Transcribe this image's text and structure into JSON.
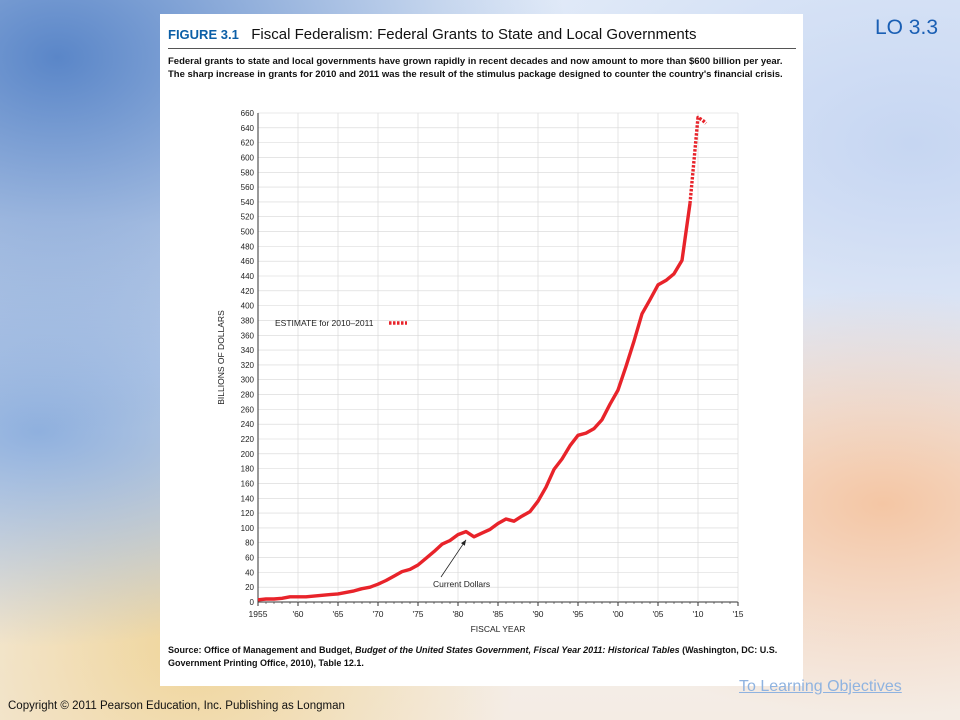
{
  "slide": {
    "lo_label": "LO 3.3",
    "link_text": "To Learning Objectives",
    "copyright": "Copyright © 2011 Pearson Education, Inc. Publishing as Longman"
  },
  "figure": {
    "label": "FIGURE 3.1",
    "title": "Fiscal Federalism: Federal Grants to State and Local Governments",
    "caption": "Federal grants to state and local governments have grown rapidly in recent decades and now amount to more than $600 billion per year. The sharp increase in grants for 2010 and 2011 was the result of the stimulus package designed to counter the country's financial crisis.",
    "source_prefix": "Source: Office of Management and Budget, ",
    "source_italic": "Budget of the United States Government, Fiscal Year 2011: Historical Tables",
    "source_suffix": " (Washington, DC: U.S. Government Printing Office, 2010), Table 12.1."
  },
  "chart_data": {
    "type": "line",
    "xlabel": "FISCAL YEAR",
    "ylabel": "BILLIONS OF DOLLARS",
    "xlim": [
      1955,
      2015
    ],
    "ylim": [
      0,
      660
    ],
    "x_ticks": [
      1955,
      1960,
      1965,
      1970,
      1975,
      1980,
      1985,
      1990,
      1995,
      2000,
      2005,
      2010,
      2015
    ],
    "x_tick_labels": [
      "1955",
      "'60",
      "'65",
      "'70",
      "'75",
      "'80",
      "'85",
      "'90",
      "'95",
      "'00",
      "'05",
      "'10",
      "'15"
    ],
    "y_ticks": [
      0,
      20,
      40,
      60,
      80,
      100,
      120,
      140,
      160,
      180,
      200,
      220,
      240,
      260,
      280,
      300,
      320,
      340,
      360,
      380,
      400,
      420,
      440,
      460,
      480,
      500,
      520,
      540,
      560,
      580,
      600,
      620,
      640,
      660
    ],
    "grid": true,
    "line_color": "#e8232a",
    "series": [
      {
        "name": "Current Dollars",
        "style": "solid",
        "x": [
          1955,
          1956,
          1957,
          1958,
          1959,
          1960,
          1961,
          1962,
          1963,
          1964,
          1965,
          1966,
          1967,
          1968,
          1969,
          1970,
          1971,
          1972,
          1973,
          1974,
          1975,
          1976,
          1977,
          1978,
          1979,
          1980,
          1981,
          1982,
          1983,
          1984,
          1985,
          1986,
          1987,
          1988,
          1989,
          1990,
          1991,
          1992,
          1993,
          1994,
          1995,
          1996,
          1997,
          1998,
          1999,
          2000,
          2001,
          2002,
          2003,
          2004,
          2005,
          2006,
          2007,
          2008,
          2009
        ],
        "y": [
          3,
          4,
          4,
          5,
          7,
          7,
          7,
          8,
          9,
          10,
          11,
          13,
          15,
          18,
          20,
          24,
          29,
          35,
          41,
          44,
          50,
          59,
          68,
          78,
          83,
          91,
          95,
          88,
          93,
          98,
          106,
          112,
          109,
          116,
          122,
          136,
          155,
          179,
          193,
          211,
          225,
          228,
          234,
          246,
          267,
          286,
          318,
          352,
          389,
          408,
          428,
          434,
          443,
          461,
          538
        ]
      },
      {
        "name": "ESTIMATE for 2010–2011",
        "style": "dotted",
        "x": [
          2009,
          2010,
          2010.6,
          2011
        ],
        "y": [
          538,
          654,
          650,
          646
        ]
      }
    ],
    "annotations": [
      {
        "text": "ESTIMATE for 2010–2011",
        "type": "legend"
      },
      {
        "text": "Current Dollars",
        "type": "label",
        "points_to": [
          1981,
          92
        ]
      }
    ]
  }
}
